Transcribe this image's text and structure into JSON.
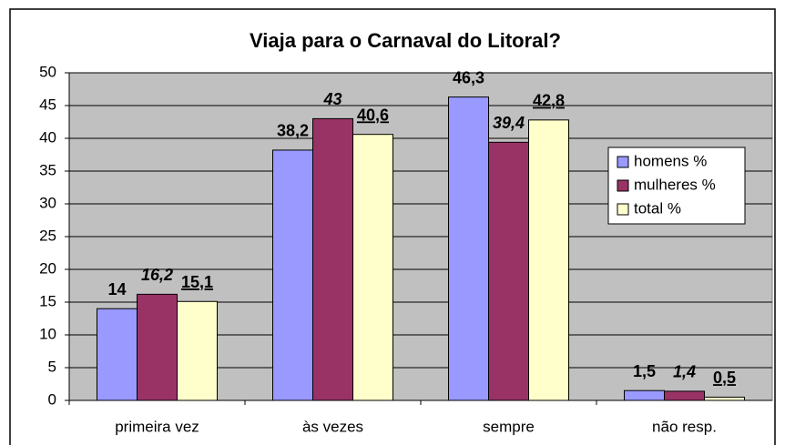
{
  "chart_data": {
    "type": "bar",
    "title": "Viaja para o Carnaval do Litoral?",
    "categories": [
      "primeira vez",
      "às vezes",
      "sempre",
      "não resp."
    ],
    "series": [
      {
        "name": "homens %",
        "color": "#9999ff",
        "values": [
          14,
          38.2,
          46.3,
          1.5
        ],
        "value_labels": [
          "14",
          "38,2",
          "46,3",
          "1,5"
        ]
      },
      {
        "name": "mulheres %",
        "color": "#993366",
        "values": [
          16.2,
          43,
          39.4,
          1.4
        ],
        "value_labels": [
          "16,2",
          "43",
          "39,4",
          "1,4"
        ]
      },
      {
        "name": "total %",
        "color": "#ffffcc",
        "values": [
          15.1,
          40.6,
          42.8,
          0.5
        ],
        "value_labels": [
          "15,1",
          "40,6",
          "42,8",
          "0,5"
        ]
      }
    ],
    "ylim": [
      0,
      50
    ],
    "yticks": [
      0,
      5,
      10,
      15,
      20,
      25,
      30,
      35,
      40,
      45,
      50
    ],
    "grid": true,
    "legend": "right"
  }
}
